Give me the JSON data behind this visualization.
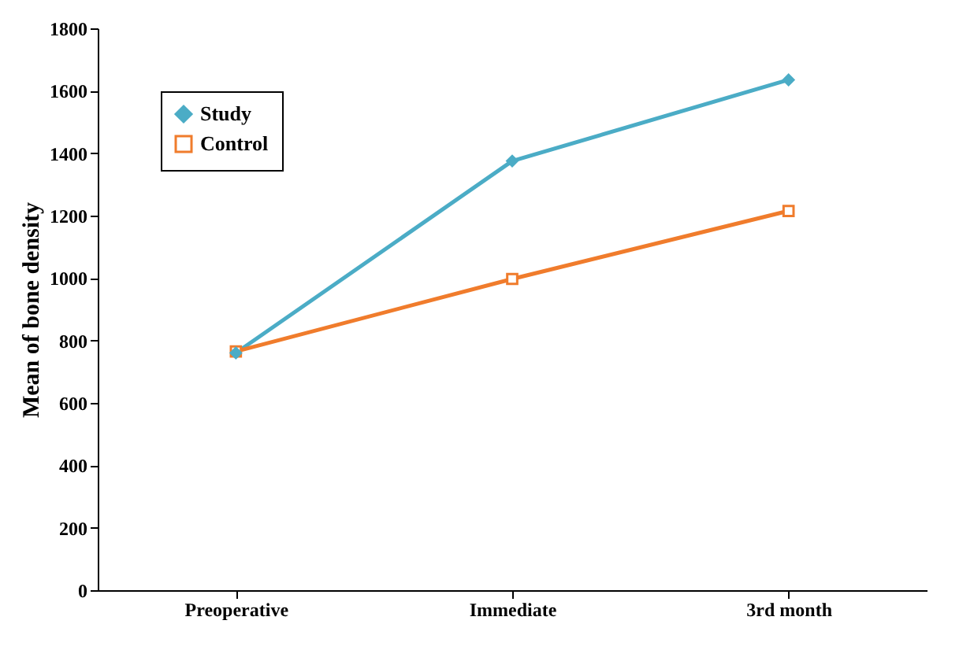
{
  "chart_data": {
    "type": "line",
    "ylabel": "Mean of bone density",
    "categories": [
      "Preoperative",
      "Immediate",
      "3rd month"
    ],
    "series": [
      {
        "name": "Study",
        "color": "#4bacc6",
        "values": [
          760,
          1375,
          1635
        ],
        "marker": "diamond"
      },
      {
        "name": "Control",
        "color": "#f07c2c",
        "values": [
          765,
          997,
          1215
        ],
        "marker": "square"
      }
    ],
    "ylim": [
      0,
      1800
    ],
    "yticks": [
      0,
      200,
      400,
      600,
      800,
      1000,
      1200,
      1400,
      1600,
      1800
    ],
    "grid": false,
    "legend": "top left",
    "line_style": "solid"
  }
}
